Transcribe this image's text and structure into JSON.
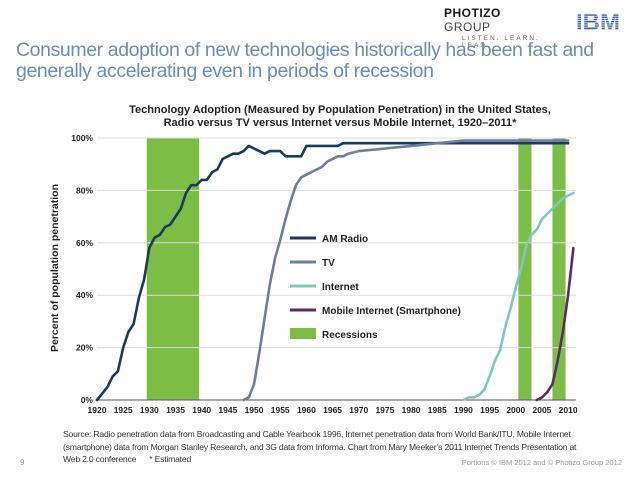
{
  "header": {
    "photizo_name": "PHOTIZO",
    "photizo_group": "GROUP",
    "photizo_tagline": "LISTEN. LEARN. LEAD.",
    "ibm_logo_text": "IBM",
    "title_line1": "Consumer adoption of new technologies historically has been fast and",
    "title_line2": "generally accelerating even in periods of recession"
  },
  "chart_data": {
    "type": "line",
    "title_line1": "Technology Adoption (Measured by Population Penetration) in the United States,",
    "title_line2": "Radio versus TV versus Internet versus Mobile Internet, 1920–2011*",
    "ylabel": "Percent of population penetration",
    "xlabel": "",
    "xlim": [
      1920,
      2011.5
    ],
    "ylim": [
      0,
      100
    ],
    "x_ticks": [
      1920,
      1925,
      1930,
      1935,
      1940,
      1945,
      1950,
      1955,
      1960,
      1965,
      1970,
      1975,
      1980,
      1985,
      1990,
      1995,
      2000,
      2005,
      2010
    ],
    "y_ticks": [
      0,
      20,
      40,
      60,
      80,
      100
    ],
    "y_tick_labels": [
      "0%",
      "20%",
      "40%",
      "60%",
      "80%",
      "100%"
    ],
    "recessions": [
      [
        1929.5,
        1939.5
      ],
      [
        2000.5,
        2003
      ],
      [
        2007,
        2009.5
      ]
    ],
    "series": [
      {
        "name": "AM Radio",
        "color": "#1c3a5e",
        "x": [
          1920,
          1922,
          1923,
          1924,
          1925,
          1926,
          1927,
          1928,
          1929,
          1930,
          1931,
          1932,
          1933,
          1934,
          1935,
          1936,
          1937,
          1938,
          1939,
          1940,
          1941,
          1942,
          1943,
          1944,
          1945,
          1946,
          1947,
          1948,
          1949,
          1950,
          1951,
          1952,
          1953,
          1954,
          1955,
          1956,
          1957,
          1958,
          1959,
          1960,
          1961,
          1962,
          1963,
          1964,
          1965,
          1966,
          1967,
          1968,
          1969,
          1970,
          1975,
          1980,
          1985,
          1990,
          1995,
          2000,
          2005,
          2010
        ],
        "y": [
          0,
          5,
          9,
          11,
          20,
          26,
          29,
          39,
          46,
          58,
          62,
          63,
          66,
          67,
          70,
          73,
          79,
          82,
          82,
          84,
          84,
          87,
          88,
          92,
          93,
          94,
          94,
          95,
          97,
          96,
          95,
          94,
          95,
          95,
          95,
          93,
          93,
          93,
          93,
          97,
          97,
          97,
          97,
          97,
          97,
          97,
          98,
          98,
          98,
          98,
          98,
          98,
          98,
          98,
          98,
          98,
          98,
          98
        ]
      },
      {
        "name": "TV",
        "color": "#6e7f9a",
        "x": [
          1948,
          1949,
          1950,
          1951,
          1952,
          1953,
          1954,
          1955,
          1956,
          1957,
          1958,
          1959,
          1960,
          1961,
          1962,
          1963,
          1964,
          1965,
          1966,
          1967,
          1968,
          1970,
          1975,
          1980,
          1985,
          1990,
          1995,
          2000,
          2005,
          2010
        ],
        "y": [
          0,
          1,
          6,
          18,
          31,
          44,
          54,
          61,
          69,
          76,
          82,
          85,
          86,
          87,
          88,
          89,
          91,
          92,
          93,
          93,
          94,
          95,
          96,
          97,
          98,
          99,
          99,
          99,
          99,
          99
        ],
        "y_note": "approximate"
      },
      {
        "name": "Internet",
        "color": "#7ec8c2",
        "x": [
          1990,
          1991,
          1992,
          1993,
          1994,
          1995,
          1996,
          1997,
          1998,
          1999,
          2000,
          2001,
          2002,
          2003,
          2004,
          2005,
          2006,
          2007,
          2008,
          2009,
          2010,
          2011
        ],
        "y": [
          0,
          1,
          1,
          2,
          4,
          9,
          15,
          19,
          28,
          35,
          43,
          50,
          59,
          63,
          65,
          69,
          71,
          73,
          75,
          77,
          78,
          79
        ]
      },
      {
        "name": "Mobile Internet (Smartphone)",
        "color": "#5b2c5e",
        "x": [
          2004,
          2005,
          2006,
          2007,
          2008,
          2009,
          2010,
          2011
        ],
        "y": [
          0,
          1,
          3,
          6,
          15,
          26,
          40,
          58
        ]
      }
    ],
    "legend": [
      {
        "name": "AM Radio",
        "color": "#1c3a5e",
        "kind": "line"
      },
      {
        "name": "TV",
        "color": "#6e7f9a",
        "kind": "line"
      },
      {
        "name": "Internet",
        "color": "#7ec8c2",
        "kind": "line"
      },
      {
        "name": "Mobile Internet (Smartphone)",
        "color": "#5b2c5e",
        "kind": "line"
      },
      {
        "name": "Recessions",
        "color": "#7bbd45",
        "kind": "box"
      }
    ],
    "recession_color": "#7bbd45",
    "grid_color": "#dddddd"
  },
  "footer": {
    "source_line1": "Source: Radio penetration data from Broadcasting and Cable Yearbook 1996, Internet penetration data from World Bank/ITU, Mobile Internet",
    "source_line2": "(smartphone) data from Morgan Stanley Research, and 3G data from Informa. Chart from Mary Meeker’s 2011 Internet Trends Presentation at",
    "source_line3": "Web 2.0 conference      * Estimated",
    "page_number": "9",
    "copyright": "Portions © IBM 2012 and © Photizo Group 2012"
  }
}
